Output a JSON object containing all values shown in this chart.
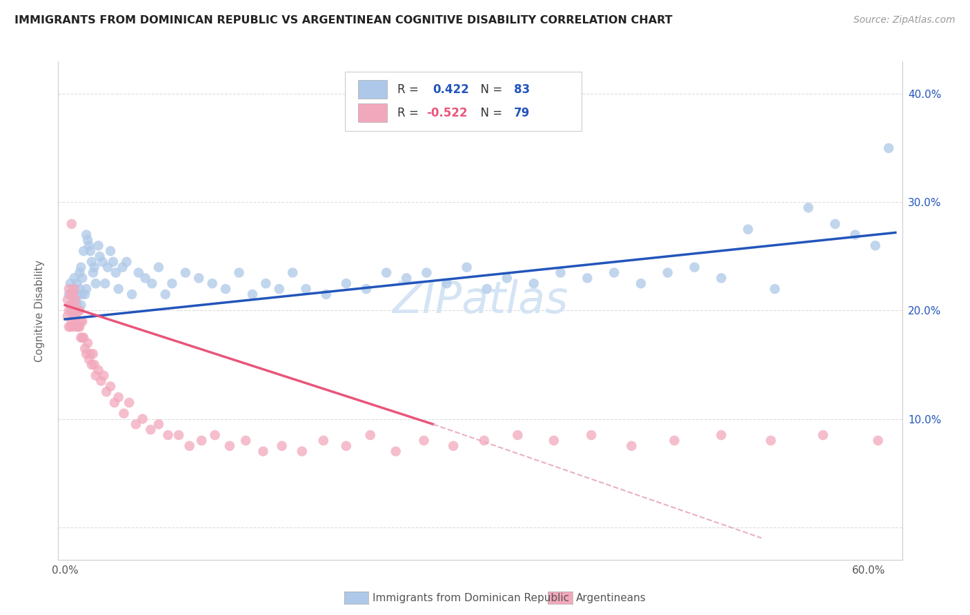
{
  "title": "IMMIGRANTS FROM DOMINICAN REPUBLIC VS ARGENTINEAN COGNITIVE DISABILITY CORRELATION CHART",
  "source": "Source: ZipAtlas.com",
  "ylabel": "Cognitive Disability",
  "xlim": [
    -0.005,
    0.625
  ],
  "ylim": [
    -0.03,
    0.43
  ],
  "x_tick_positions": [
    0.0,
    0.1,
    0.2,
    0.3,
    0.4,
    0.5,
    0.6
  ],
  "x_tick_labels": [
    "0.0%",
    "",
    "",
    "",
    "",
    "",
    "60.0%"
  ],
  "y_tick_positions": [
    0.0,
    0.1,
    0.2,
    0.3,
    0.4
  ],
  "y_tick_labels_right": [
    "",
    "10.0%",
    "20.0%",
    "30.0%",
    "40.0%"
  ],
  "blue_color": "#adc8e8",
  "pink_color": "#f2a8bc",
  "blue_line_color": "#2255bb",
  "pink_line_color": "#e8557a",
  "pink_dash_color": "#e8b0c0",
  "grid_color": "#dddddd",
  "watermark_color": "#d4e4f4",
  "legend_label_blue": "Immigrants from Dominican Republic",
  "legend_label_pink": "Argentineans",
  "watermark": "ZIPatlas",
  "background_color": "#ffffff",
  "blue_R": 0.422,
  "blue_N": 83,
  "pink_R": -0.522,
  "pink_N": 79,
  "blue_line_x0": 0.0,
  "blue_line_y0": 0.192,
  "blue_line_x1": 0.62,
  "blue_line_y1": 0.272,
  "pink_line_x0": 0.0,
  "pink_line_y0": 0.205,
  "pink_line_solid_x1": 0.275,
  "pink_line_solid_y1": 0.095,
  "pink_line_dash_x1": 0.52,
  "pink_line_dash_y1": -0.01,
  "blue_scatter_x": [
    0.003,
    0.004,
    0.005,
    0.006,
    0.006,
    0.007,
    0.007,
    0.008,
    0.008,
    0.009,
    0.009,
    0.01,
    0.01,
    0.011,
    0.011,
    0.012,
    0.012,
    0.013,
    0.013,
    0.014,
    0.015,
    0.016,
    0.016,
    0.017,
    0.018,
    0.019,
    0.02,
    0.021,
    0.022,
    0.023,
    0.025,
    0.026,
    0.028,
    0.03,
    0.032,
    0.034,
    0.036,
    0.038,
    0.04,
    0.043,
    0.046,
    0.05,
    0.055,
    0.06,
    0.065,
    0.07,
    0.075,
    0.08,
    0.09,
    0.1,
    0.11,
    0.12,
    0.13,
    0.14,
    0.15,
    0.16,
    0.17,
    0.18,
    0.195,
    0.21,
    0.225,
    0.24,
    0.255,
    0.27,
    0.285,
    0.3,
    0.315,
    0.33,
    0.35,
    0.37,
    0.39,
    0.41,
    0.43,
    0.45,
    0.47,
    0.49,
    0.51,
    0.53,
    0.555,
    0.575,
    0.59,
    0.605,
    0.615
  ],
  "blue_scatter_y": [
    0.215,
    0.225,
    0.2,
    0.195,
    0.22,
    0.21,
    0.23,
    0.195,
    0.21,
    0.205,
    0.225,
    0.2,
    0.215,
    0.22,
    0.235,
    0.205,
    0.24,
    0.215,
    0.23,
    0.255,
    0.215,
    0.27,
    0.22,
    0.265,
    0.26,
    0.255,
    0.245,
    0.235,
    0.24,
    0.225,
    0.26,
    0.25,
    0.245,
    0.225,
    0.24,
    0.255,
    0.245,
    0.235,
    0.22,
    0.24,
    0.245,
    0.215,
    0.235,
    0.23,
    0.225,
    0.24,
    0.215,
    0.225,
    0.235,
    0.23,
    0.225,
    0.22,
    0.235,
    0.215,
    0.225,
    0.22,
    0.235,
    0.22,
    0.215,
    0.225,
    0.22,
    0.235,
    0.23,
    0.235,
    0.225,
    0.24,
    0.22,
    0.23,
    0.225,
    0.235,
    0.23,
    0.235,
    0.225,
    0.235,
    0.24,
    0.23,
    0.275,
    0.22,
    0.295,
    0.28,
    0.27,
    0.26,
    0.35
  ],
  "pink_scatter_x": [
    0.002,
    0.002,
    0.003,
    0.003,
    0.003,
    0.004,
    0.004,
    0.004,
    0.005,
    0.005,
    0.005,
    0.006,
    0.006,
    0.006,
    0.007,
    0.007,
    0.007,
    0.008,
    0.008,
    0.009,
    0.009,
    0.01,
    0.01,
    0.011,
    0.011,
    0.012,
    0.012,
    0.013,
    0.013,
    0.014,
    0.015,
    0.016,
    0.017,
    0.018,
    0.019,
    0.02,
    0.021,
    0.022,
    0.023,
    0.025,
    0.027,
    0.029,
    0.031,
    0.034,
    0.037,
    0.04,
    0.044,
    0.048,
    0.053,
    0.058,
    0.064,
    0.07,
    0.077,
    0.085,
    0.093,
    0.102,
    0.112,
    0.123,
    0.135,
    0.148,
    0.162,
    0.177,
    0.193,
    0.21,
    0.228,
    0.247,
    0.268,
    0.29,
    0.313,
    0.338,
    0.365,
    0.393,
    0.423,
    0.455,
    0.49,
    0.527,
    0.566,
    0.607,
    0.65
  ],
  "pink_scatter_y": [
    0.195,
    0.21,
    0.185,
    0.2,
    0.22,
    0.185,
    0.205,
    0.215,
    0.19,
    0.205,
    0.28,
    0.185,
    0.2,
    0.215,
    0.19,
    0.205,
    0.22,
    0.195,
    0.21,
    0.185,
    0.2,
    0.185,
    0.2,
    0.185,
    0.2,
    0.175,
    0.19,
    0.175,
    0.19,
    0.175,
    0.165,
    0.16,
    0.17,
    0.155,
    0.16,
    0.15,
    0.16,
    0.15,
    0.14,
    0.145,
    0.135,
    0.14,
    0.125,
    0.13,
    0.115,
    0.12,
    0.105,
    0.115,
    0.095,
    0.1,
    0.09,
    0.095,
    0.085,
    0.085,
    0.075,
    0.08,
    0.085,
    0.075,
    0.08,
    0.07,
    0.075,
    0.07,
    0.08,
    0.075,
    0.085,
    0.07,
    0.08,
    0.075,
    0.08,
    0.085,
    0.08,
    0.085,
    0.075,
    0.08,
    0.085,
    0.08,
    0.085,
    0.08,
    0.09
  ]
}
